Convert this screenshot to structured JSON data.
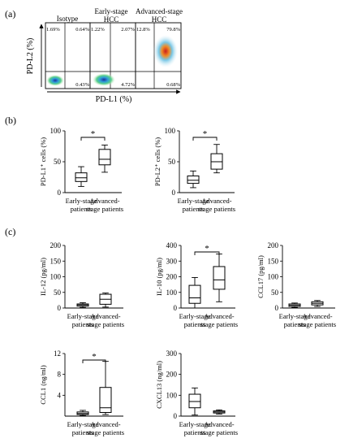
{
  "panel_a": {
    "label": "(a)",
    "columns": [
      {
        "title_lines": [
          "Isotype"
        ],
        "quadrants": {
          "ul": "1.69%",
          "ur": "0.64%",
          "lr": "0.43%"
        }
      },
      {
        "title_lines": [
          "Early-stage",
          "HCC"
        ],
        "quadrants": {
          "ul": "1.22%",
          "ur": "2.07%",
          "lr": "4.72%"
        }
      },
      {
        "title_lines": [
          "Advanced-stage",
          "HCC"
        ],
        "quadrants": {
          "ul": "12.8%",
          "ur": "79.8%",
          "lr": "0.68%"
        }
      }
    ],
    "y_axis_label": "PD-L2 (%)",
    "x_axis_label": "PD-L1 (%)"
  },
  "panel_b_label": "(b)",
  "panel_c_label": "(c)",
  "chart_data": [
    {
      "type": "boxplot",
      "ylabel": "PD-L1⁺ cells (%)",
      "ylim": [
        0,
        100
      ],
      "yticks": [
        0,
        50,
        100
      ],
      "categories": [
        [
          "Early-stage",
          "patients"
        ],
        [
          "Advanced-",
          "stage patients"
        ]
      ],
      "boxes": [
        {
          "min": 10,
          "q1": 18,
          "median": 24,
          "q3": 32,
          "max": 42
        },
        {
          "min": 33,
          "q1": 45,
          "median": 54,
          "q3": 70,
          "max": 77
        }
      ],
      "significance": "*"
    },
    {
      "type": "boxplot",
      "ylabel": "PD-L2⁺ cells (%)",
      "ylim": [
        0,
        100
      ],
      "yticks": [
        0,
        50,
        100
      ],
      "categories": [
        [
          "Early-stage",
          "patients"
        ],
        [
          "Advanced-",
          "stage patients"
        ]
      ],
      "boxes": [
        {
          "min": 8,
          "q1": 15,
          "median": 20,
          "q3": 27,
          "max": 35
        },
        {
          "min": 32,
          "q1": 38,
          "median": 50,
          "q3": 63,
          "max": 78
        }
      ],
      "significance": "*"
    },
    {
      "type": "boxplot",
      "ylabel": "IL-12 (pg/ml)",
      "ylim": [
        0,
        200
      ],
      "yticks": [
        0,
        50,
        100,
        150,
        200
      ],
      "categories": [
        [
          "Early-stage",
          "patients"
        ],
        [
          "Advanced-",
          "stage patients"
        ]
      ],
      "boxes": [
        {
          "min": 2,
          "q1": 6,
          "median": 10,
          "q3": 13,
          "max": 17
        },
        {
          "min": 3,
          "q1": 12,
          "median": 28,
          "q3": 44,
          "max": 48
        }
      ],
      "significance": ""
    },
    {
      "type": "boxplot",
      "ylabel": "IL-10 (pg/ml)",
      "ylim": [
        0,
        400
      ],
      "yticks": [
        0,
        100,
        200,
        300,
        400
      ],
      "categories": [
        [
          "Early-stage",
          "patients"
        ],
        [
          "Advanced-",
          "stage patients"
        ]
      ],
      "boxes": [
        {
          "min": 0,
          "q1": 30,
          "median": 65,
          "q3": 145,
          "max": 195
        },
        {
          "min": 40,
          "q1": 120,
          "median": 180,
          "q3": 265,
          "max": 345
        }
      ],
      "significance": "*"
    },
    {
      "type": "boxplot",
      "ylabel": "CCL17 (pg/ml)",
      "ylim": [
        0,
        200
      ],
      "yticks": [
        0,
        50,
        100,
        150,
        200
      ],
      "categories": [
        [
          "Early-stage",
          "patients"
        ],
        [
          "Advanced-",
          "stage patients"
        ]
      ],
      "boxes": [
        {
          "min": 2,
          "q1": 5,
          "median": 9,
          "q3": 13,
          "max": 16
        },
        {
          "min": 5,
          "q1": 10,
          "median": 15,
          "q3": 20,
          "max": 24
        }
      ],
      "significance": ""
    },
    {
      "type": "boxplot",
      "ylabel": "CCL1 (ng/ml)",
      "ylim": [
        0,
        12
      ],
      "yticks": [
        4,
        8,
        12
      ],
      "categories": [
        [
          "Early-stage",
          "patients"
        ],
        [
          "Advanced-",
          "stage patients"
        ]
      ],
      "boxes": [
        {
          "min": 0.1,
          "q1": 0.3,
          "median": 0.5,
          "q3": 0.8,
          "max": 1.1
        },
        {
          "min": 0.3,
          "q1": 0.7,
          "median": 1.6,
          "q3": 5.5,
          "max": 10.5
        }
      ],
      "significance": "*"
    },
    {
      "type": "boxplot",
      "ylabel": "CXCL13 (ng/ml)",
      "ylim": [
        0,
        300
      ],
      "yticks": [
        0,
        100,
        200,
        300
      ],
      "categories": [
        [
          "Early-stage",
          "patients"
        ],
        [
          "Advanced-",
          "stage patients"
        ]
      ],
      "boxes": [
        {
          "min": 5,
          "q1": 40,
          "median": 70,
          "q3": 105,
          "max": 135
        },
        {
          "min": 10,
          "q1": 15,
          "median": 20,
          "q3": 25,
          "max": 30
        }
      ],
      "significance": ""
    }
  ]
}
